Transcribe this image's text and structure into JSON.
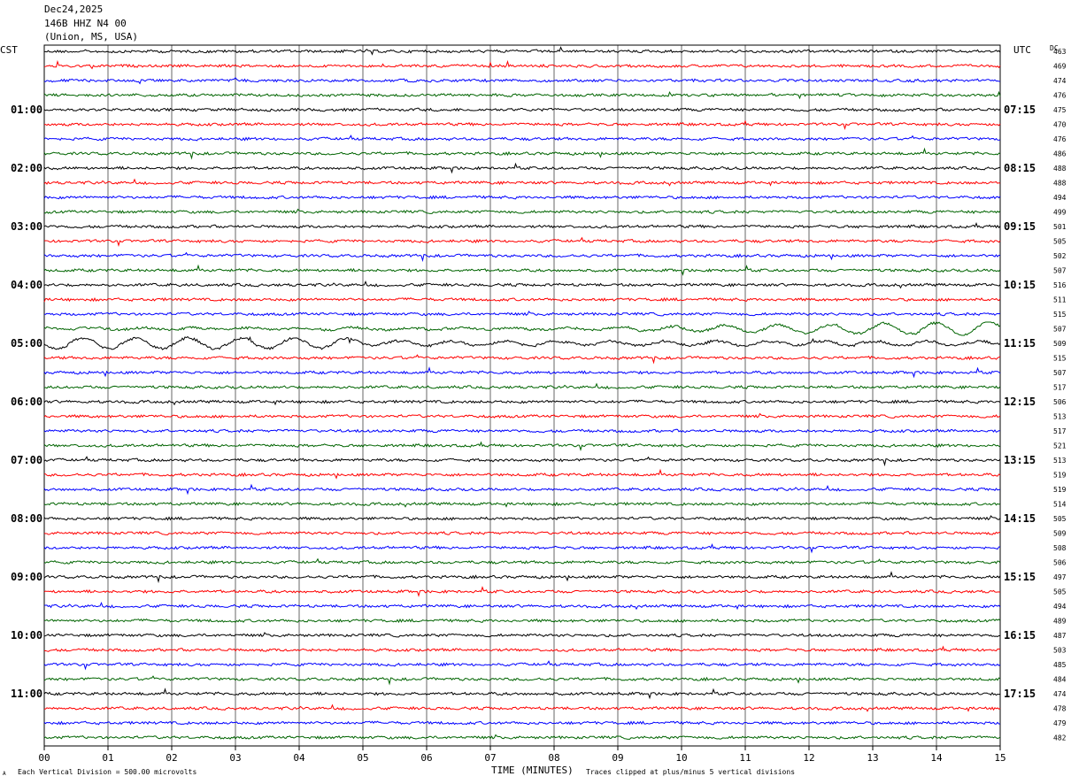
{
  "header": {
    "date": "Dec24,2025",
    "station": "146B HHZ N4 00",
    "location": "(Union, MS, USA)"
  },
  "left_tz": "CST",
  "right_tz": "UTC",
  "dc_header": "DC",
  "footer": {
    "scale_note": "Each Vertical Division =  500.00 microvolts",
    "clip_note": "Traces clipped at plus/minus 5 vertical divisions",
    "corner_mark": "A"
  },
  "colors": {
    "black": "#000000",
    "red": "#ff0000",
    "blue": "#0000ff",
    "green": "#006400",
    "grid": "#000000"
  },
  "chart_data": {
    "type": "line",
    "title": "Dec24,2025 146B HHZ N4 00 (Union, MS, USA)",
    "xlabel": "TIME (MINUTES)",
    "xlim": [
      0,
      15
    ],
    "x_ticks": [
      "00",
      "01",
      "02",
      "03",
      "04",
      "05",
      "06",
      "07",
      "08",
      "09",
      "10",
      "11",
      "12",
      "13",
      "14",
      "15"
    ],
    "trace_color_cycle": [
      "black",
      "red",
      "blue",
      "green"
    ],
    "left_hour_labels": [
      {
        "row": 4,
        "label": "01:00"
      },
      {
        "row": 8,
        "label": "02:00"
      },
      {
        "row": 12,
        "label": "03:00"
      },
      {
        "row": 16,
        "label": "04:00"
      },
      {
        "row": 20,
        "label": "05:00"
      },
      {
        "row": 24,
        "label": "06:00"
      },
      {
        "row": 28,
        "label": "07:00"
      },
      {
        "row": 32,
        "label": "08:00"
      },
      {
        "row": 36,
        "label": "09:00"
      },
      {
        "row": 40,
        "label": "10:00"
      },
      {
        "row": 44,
        "label": "11:00"
      }
    ],
    "right_hour_labels": [
      {
        "row": 4,
        "label": "07:15"
      },
      {
        "row": 8,
        "label": "08:15"
      },
      {
        "row": 12,
        "label": "09:15"
      },
      {
        "row": 16,
        "label": "10:15"
      },
      {
        "row": 20,
        "label": "11:15"
      },
      {
        "row": 24,
        "label": "12:15"
      },
      {
        "row": 28,
        "label": "13:15"
      },
      {
        "row": 32,
        "label": "14:15"
      },
      {
        "row": 36,
        "label": "15:15"
      },
      {
        "row": 40,
        "label": "16:15"
      },
      {
        "row": 44,
        "label": "17:15"
      }
    ],
    "dc_offsets": [
      463,
      469,
      474,
      476,
      475,
      470,
      476,
      486,
      488,
      488,
      494,
      499,
      501,
      505,
      502,
      507,
      516,
      511,
      515,
      507,
      509,
      515,
      507,
      517,
      506,
      513,
      517,
      521,
      513,
      519,
      519,
      514,
      505,
      509,
      508,
      506,
      497,
      505,
      494,
      489,
      487,
      503,
      485,
      484,
      474,
      478,
      479,
      482
    ],
    "notable_traces": [
      {
        "row": 19,
        "description_amplitude": "long-period swell increasing after minute 9",
        "amplitude": 2.2
      },
      {
        "row": 20,
        "description_amplitude": "long-period swell in first 5 minutes",
        "amplitude": 2.4
      }
    ]
  }
}
